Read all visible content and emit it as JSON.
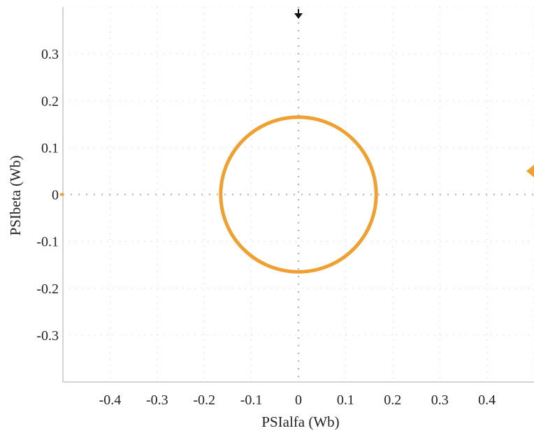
{
  "chart_data": {
    "type": "scatter",
    "title": "",
    "xlabel": "PSIalfa (Wb)",
    "ylabel": "PSIbeta (Wb)",
    "xlim": [
      -0.5,
      0.5
    ],
    "ylim": [
      -0.4,
      0.4
    ],
    "x_ticks": [
      "-0.4",
      "-0.3",
      "-0.2",
      "-0.1",
      "0",
      "0.1",
      "0.2",
      "0.3",
      "0.4"
    ],
    "y_ticks": [
      "0.3",
      "0.2",
      "0.1",
      "0",
      "-0.1",
      "-0.2",
      "-0.3"
    ],
    "grid": true,
    "series": [
      {
        "shape": "circle",
        "center": [
          0.0,
          0.0
        ],
        "radius": 0.165,
        "color": "#f0a030"
      }
    ],
    "markers": {
      "x_offset_marker": {
        "value": 0.0,
        "color": "#111111"
      },
      "y_offset_marker": {
        "value": 0.05,
        "color": "#f0a030"
      }
    }
  },
  "colors": {
    "background": "#ffffff",
    "grid": "#c8c8c8",
    "frame": "#d4d4d4",
    "trace": "#f0a030"
  }
}
